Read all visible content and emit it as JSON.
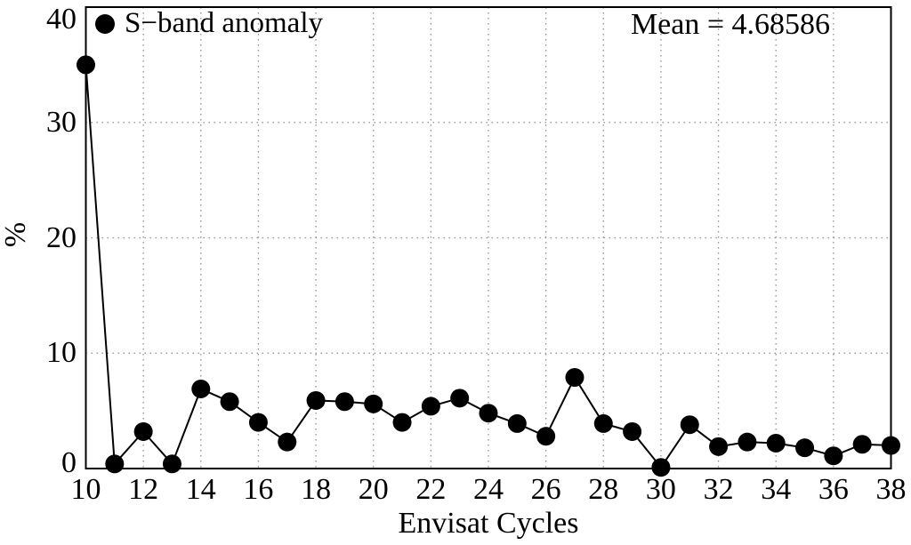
{
  "chart_data": {
    "type": "line",
    "title": "",
    "xlabel": "Envisat Cycles",
    "ylabel": "%",
    "annotation": "Mean = 4.68586",
    "legend": {
      "marker": "filled-circle",
      "label": "S−band anomaly",
      "position": "top-left-inside"
    },
    "x": [
      10,
      11,
      12,
      13,
      14,
      15,
      16,
      17,
      18,
      19,
      20,
      21,
      22,
      23,
      24,
      25,
      26,
      27,
      28,
      29,
      30,
      31,
      32,
      33,
      34,
      35,
      36,
      37,
      38
    ],
    "series": [
      {
        "name": "S−band anomaly",
        "values": [
          35.0,
          0.4,
          3.2,
          0.4,
          6.9,
          5.8,
          4.0,
          2.3,
          5.9,
          5.8,
          5.6,
          4.0,
          5.4,
          6.1,
          4.8,
          3.9,
          2.8,
          7.9,
          3.9,
          3.2,
          0.1,
          3.8,
          1.9,
          2.3,
          2.2,
          1.8,
          1.1,
          2.1,
          2.0
        ]
      }
    ],
    "xlim": [
      10,
      38
    ],
    "ylim": [
      0,
      40
    ],
    "xticks": [
      10,
      12,
      14,
      16,
      18,
      20,
      22,
      24,
      26,
      28,
      30,
      32,
      34,
      36,
      38
    ],
    "yticks": [
      0,
      10,
      20,
      30,
      40
    ],
    "grid": "dotted",
    "marker_style": "filled-circle",
    "colors": {
      "line": "#000000",
      "marker": "#000000",
      "grid": "#8f8f8f",
      "frame": "#000000",
      "background": "#ffffff",
      "text": "#000000"
    }
  }
}
